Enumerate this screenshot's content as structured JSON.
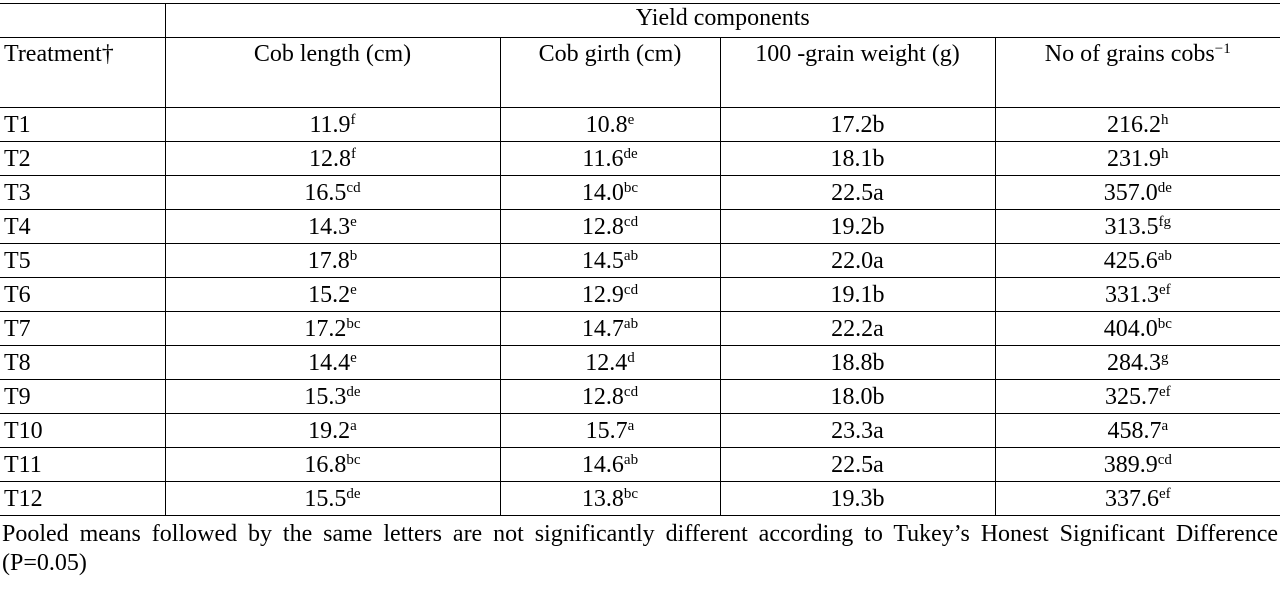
{
  "table": {
    "group_header": "Yield components",
    "columns": [
      {
        "text": "Treatment†"
      },
      {
        "text": "Cob length (cm)"
      },
      {
        "text": "Cob girth (cm)"
      },
      {
        "text": "100 -grain weight (g)"
      },
      {
        "text": "No of grains cobs",
        "sup": "−1"
      }
    ],
    "rows": [
      [
        {
          "text": "T1"
        },
        {
          "text": "11.9",
          "sup": "f"
        },
        {
          "text": "10.8",
          "sup": "e"
        },
        {
          "text": "17.2b"
        },
        {
          "text": "216.2",
          "sup": "h"
        }
      ],
      [
        {
          "text": "T2"
        },
        {
          "text": "12.8",
          "sup": "f"
        },
        {
          "text": "11.6",
          "sup": "de"
        },
        {
          "text": "18.1b"
        },
        {
          "text": "231.9",
          "sup": "h"
        }
      ],
      [
        {
          "text": "T3"
        },
        {
          "text": "16.5",
          "sup": "cd"
        },
        {
          "text": "14.0",
          "sup": "bc"
        },
        {
          "text": "22.5a"
        },
        {
          "text": "357.0",
          "sup": "de"
        }
      ],
      [
        {
          "text": "T4"
        },
        {
          "text": "14.3",
          "sup": "e"
        },
        {
          "text": "12.8",
          "sup": "cd"
        },
        {
          "text": "19.2b"
        },
        {
          "text": "313.5",
          "sup": "fg"
        }
      ],
      [
        {
          "text": "T5"
        },
        {
          "text": "17.8",
          "sup": "b"
        },
        {
          "text": "14.5",
          "sup": "ab"
        },
        {
          "text": "22.0a"
        },
        {
          "text": "425.6",
          "sup": "ab"
        }
      ],
      [
        {
          "text": "T6"
        },
        {
          "text": "15.2",
          "sup": "e"
        },
        {
          "text": "12.9",
          "sup": "cd"
        },
        {
          "text": "19.1b"
        },
        {
          "text": "331.3",
          "sup": "ef"
        }
      ],
      [
        {
          "text": "T7"
        },
        {
          "text": "17.2",
          "sup": "bc"
        },
        {
          "text": "14.7",
          "sup": "ab"
        },
        {
          "text": "22.2a"
        },
        {
          "text": "404.0",
          "sup": "bc"
        }
      ],
      [
        {
          "text": "T8"
        },
        {
          "text": "14.4",
          "sup": "e"
        },
        {
          "text": "12.4",
          "sup": "d"
        },
        {
          "text": "18.8b"
        },
        {
          "text": "284.3",
          "sup": "g"
        }
      ],
      [
        {
          "text": "T9"
        },
        {
          "text": "15.3",
          "sup": "de"
        },
        {
          "text": "12.8",
          "sup": "cd"
        },
        {
          "text": "18.0b"
        },
        {
          "text": "325.7",
          "sup": "ef"
        }
      ],
      [
        {
          "text": "T10"
        },
        {
          "text": "19.2",
          "sup": "a"
        },
        {
          "text": "15.7",
          "sup": "a"
        },
        {
          "text": "23.3a"
        },
        {
          "text": "458.7",
          "sup": "a"
        }
      ],
      [
        {
          "text": "T11"
        },
        {
          "text": "16.8",
          "sup": "bc"
        },
        {
          "text": "14.6",
          "sup": "ab"
        },
        {
          "text": "22.5a"
        },
        {
          "text": "389.9",
          "sup": "cd"
        }
      ],
      [
        {
          "text": "T12"
        },
        {
          "text": "15.5",
          "sup": "de"
        },
        {
          "text": "13.8",
          "sup": "bc"
        },
        {
          "text": "19.3b"
        },
        {
          "text": "337.6",
          "sup": "ef"
        }
      ]
    ],
    "footnote": "Pooled means followed by the same letters are not significantly different according to Tukey’s Honest Significant Difference (P=0.05)"
  }
}
